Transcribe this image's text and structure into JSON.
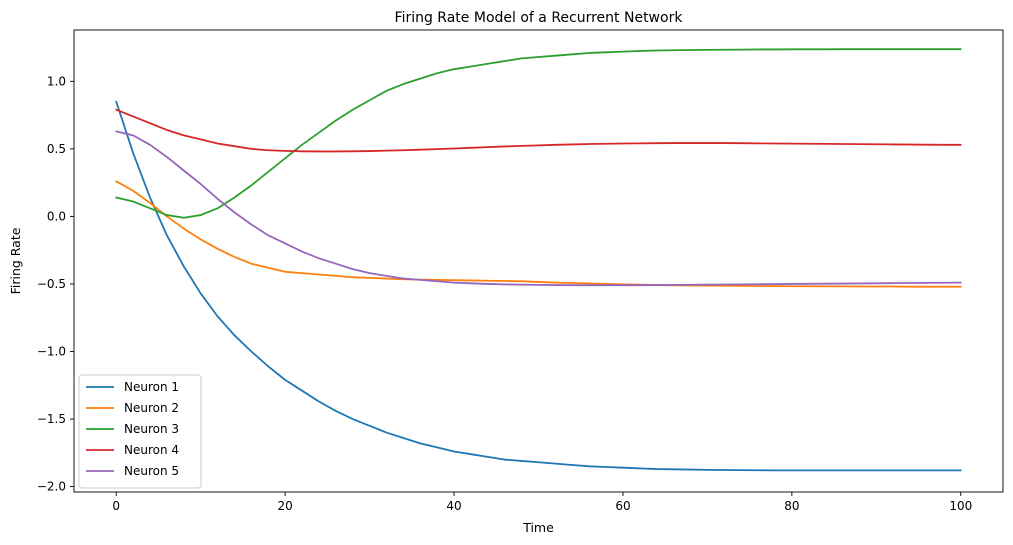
{
  "chart_data": {
    "type": "line",
    "title": "Firing Rate Model of a Recurrent Network",
    "xlabel": "Time",
    "ylabel": "Firing Rate",
    "xlim": [
      -5,
      105
    ],
    "ylim": [
      -2.04,
      1.38
    ],
    "xticks": [
      0,
      20,
      40,
      60,
      80,
      100
    ],
    "xtick_labels": [
      "0",
      "20",
      "40",
      "60",
      "80",
      "100"
    ],
    "yticks": [
      -2.0,
      -1.5,
      -1.0,
      -0.5,
      0.0,
      0.5,
      1.0
    ],
    "ytick_labels": [
      "−2.0",
      "−1.5",
      "−1.0",
      "−0.5",
      "0.0",
      "0.5",
      "1.0"
    ],
    "grid": false,
    "legend_position": "lower-left",
    "x": [
      0,
      2,
      4,
      6,
      8,
      10,
      12,
      14,
      16,
      18,
      20,
      22,
      24,
      26,
      28,
      30,
      32,
      34,
      36,
      38,
      40,
      42,
      44,
      46,
      48,
      50,
      52,
      54,
      56,
      58,
      60,
      62,
      64,
      66,
      68,
      70,
      72,
      74,
      76,
      78,
      80,
      82,
      84,
      86,
      88,
      90,
      92,
      94,
      96,
      98,
      100
    ],
    "series": [
      {
        "name": "Neuron 1",
        "color": "#1f77b4",
        "values": [
          0.85,
          0.47,
          0.14,
          -0.14,
          -0.37,
          -0.57,
          -0.74,
          -0.88,
          -1.0,
          -1.11,
          -1.21,
          -1.29,
          -1.37,
          -1.44,
          -1.5,
          -1.55,
          -1.6,
          -1.64,
          -1.68,
          -1.71,
          -1.74,
          -1.76,
          -1.78,
          -1.8,
          -1.81,
          -1.82,
          -1.83,
          -1.84,
          -1.85,
          -1.855,
          -1.86,
          -1.865,
          -1.87,
          -1.872,
          -1.874,
          -1.876,
          -1.877,
          -1.878,
          -1.879,
          -1.88,
          -1.88,
          -1.88,
          -1.88,
          -1.88,
          -1.88,
          -1.88,
          -1.88,
          -1.88,
          -1.88,
          -1.88,
          -1.88
        ]
      },
      {
        "name": "Neuron 2",
        "color": "#ff7f0e",
        "values": [
          0.26,
          0.19,
          0.1,
          0.0,
          -0.09,
          -0.17,
          -0.24,
          -0.3,
          -0.35,
          -0.38,
          -0.41,
          -0.42,
          -0.43,
          -0.44,
          -0.45,
          -0.455,
          -0.46,
          -0.465,
          -0.468,
          -0.47,
          -0.472,
          -0.474,
          -0.476,
          -0.478,
          -0.48,
          -0.485,
          -0.49,
          -0.493,
          -0.496,
          -0.5,
          -0.503,
          -0.505,
          -0.508,
          -0.51,
          -0.511,
          -0.512,
          -0.513,
          -0.514,
          -0.515,
          -0.516,
          -0.517,
          -0.517,
          -0.518,
          -0.518,
          -0.519,
          -0.519,
          -0.519,
          -0.52,
          -0.52,
          -0.52,
          -0.52
        ]
      },
      {
        "name": "Neuron 3",
        "color": "#2ca02c",
        "values": [
          0.14,
          0.11,
          0.06,
          0.01,
          -0.01,
          0.01,
          0.06,
          0.14,
          0.23,
          0.33,
          0.43,
          0.53,
          0.62,
          0.71,
          0.79,
          0.86,
          0.93,
          0.98,
          1.02,
          1.06,
          1.09,
          1.11,
          1.13,
          1.15,
          1.17,
          1.18,
          1.19,
          1.2,
          1.21,
          1.215,
          1.22,
          1.225,
          1.228,
          1.23,
          1.232,
          1.233,
          1.234,
          1.235,
          1.236,
          1.236,
          1.237,
          1.237,
          1.237,
          1.238,
          1.238,
          1.238,
          1.238,
          1.238,
          1.238,
          1.238,
          1.238
        ]
      },
      {
        "name": "Neuron 4",
        "color": "#d62728",
        "values": [
          0.79,
          0.74,
          0.69,
          0.64,
          0.6,
          0.57,
          0.54,
          0.52,
          0.5,
          0.49,
          0.485,
          0.482,
          0.481,
          0.481,
          0.482,
          0.484,
          0.487,
          0.49,
          0.494,
          0.498,
          0.503,
          0.508,
          0.513,
          0.518,
          0.522,
          0.526,
          0.53,
          0.533,
          0.536,
          0.538,
          0.54,
          0.541,
          0.542,
          0.543,
          0.543,
          0.543,
          0.543,
          0.542,
          0.541,
          0.54,
          0.539,
          0.538,
          0.537,
          0.536,
          0.535,
          0.534,
          0.533,
          0.532,
          0.531,
          0.53,
          0.53
        ]
      },
      {
        "name": "Neuron 5",
        "color": "#9467bd",
        "values": [
          0.63,
          0.6,
          0.53,
          0.44,
          0.34,
          0.24,
          0.13,
          0.03,
          -0.06,
          -0.14,
          -0.2,
          -0.26,
          -0.31,
          -0.35,
          -0.39,
          -0.42,
          -0.44,
          -0.46,
          -0.47,
          -0.48,
          -0.49,
          -0.495,
          -0.5,
          -0.503,
          -0.505,
          -0.507,
          -0.508,
          -0.509,
          -0.509,
          -0.509,
          -0.509,
          -0.509,
          -0.508,
          -0.507,
          -0.506,
          -0.505,
          -0.504,
          -0.503,
          -0.502,
          -0.501,
          -0.5,
          -0.499,
          -0.498,
          -0.497,
          -0.496,
          -0.495,
          -0.494,
          -0.493,
          -0.492,
          -0.491,
          -0.49
        ]
      }
    ]
  }
}
